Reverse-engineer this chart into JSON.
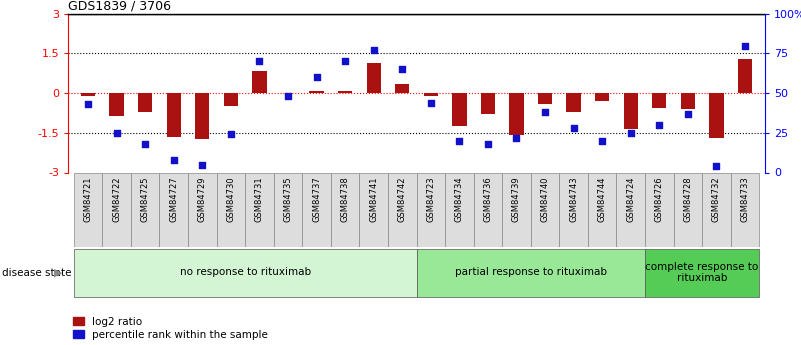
{
  "title": "GDS1839 / 3706",
  "samples": [
    "GSM84721",
    "GSM84722",
    "GSM84725",
    "GSM84727",
    "GSM84729",
    "GSM84730",
    "GSM84731",
    "GSM84735",
    "GSM84737",
    "GSM84738",
    "GSM84741",
    "GSM84742",
    "GSM84723",
    "GSM84734",
    "GSM84736",
    "GSM84739",
    "GSM84740",
    "GSM84743",
    "GSM84744",
    "GSM84724",
    "GSM84726",
    "GSM84728",
    "GSM84732",
    "GSM84733"
  ],
  "log2_ratio": [
    -0.12,
    -0.85,
    -0.7,
    -1.65,
    -1.75,
    -0.5,
    0.85,
    0.0,
    0.1,
    0.1,
    1.15,
    0.35,
    -0.1,
    -1.25,
    -0.8,
    -1.6,
    -0.4,
    -0.7,
    -0.3,
    -1.35,
    -0.55,
    -0.6,
    -1.7,
    1.3
  ],
  "percentile_rank": [
    43,
    25,
    18,
    8,
    5,
    24,
    70,
    48,
    60,
    70,
    77,
    65,
    44,
    20,
    18,
    22,
    38,
    28,
    20,
    25,
    30,
    37,
    4,
    80
  ],
  "group_labels": [
    "no response to rituximab",
    "partial response to rituximab",
    "complete response to\nrituximab"
  ],
  "group_colors": [
    "#d4f5d4",
    "#98e898",
    "#55cc55"
  ],
  "group_starts": [
    0,
    12,
    20
  ],
  "group_ends": [
    11,
    19,
    23
  ],
  "ylim": [
    -3,
    3
  ],
  "yticks_left": [
    -3,
    -1.5,
    0,
    1.5,
    3
  ],
  "yticks_right": [
    0,
    25,
    50,
    75,
    100
  ],
  "bar_color": "#aa1111",
  "dot_color": "#1111cc",
  "bg_color": "#ffffff",
  "legend_entries": [
    "log2 ratio",
    "percentile rank within the sample"
  ]
}
